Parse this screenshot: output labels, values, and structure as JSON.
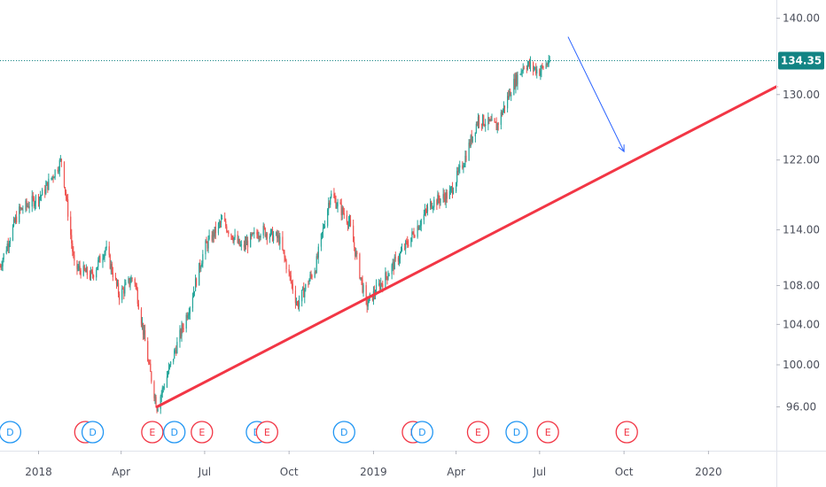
{
  "chart_data": {
    "type": "candlestick",
    "y_axis": {
      "ticks": [
        96,
        100,
        104,
        108,
        114,
        122,
        130,
        140
      ],
      "tick_labels": [
        "96.00",
        "100.00",
        "104.00",
        "108.00",
        "114.00",
        "122.00",
        "130.00",
        "140.00"
      ],
      "scale": "log",
      "range": [
        92,
        142.5
      ]
    },
    "x_axis": {
      "ticks": [
        "2018-01",
        "2018-04",
        "2018-07",
        "2018-10",
        "2019-01",
        "2019-04",
        "2019-07",
        "2019-10",
        "2020-01"
      ],
      "tick_labels": [
        "2018",
        "Apr",
        "Jul",
        "Oct",
        "2019",
        "Apr",
        "Jul",
        "Oct",
        "2020"
      ],
      "range": [
        "2017-11-20",
        "2020-03-15"
      ]
    },
    "price_path": [
      [
        "2017-11-20",
        110
      ],
      [
        "2017-12-10",
        116
      ],
      [
        "2018-01-05",
        118
      ],
      [
        "2018-01-26",
        122
      ],
      [
        "2018-02-09",
        110
      ],
      [
        "2018-02-28",
        109
      ],
      [
        "2018-03-15",
        112
      ],
      [
        "2018-03-30",
        107
      ],
      [
        "2018-04-15",
        109
      ],
      [
        "2018-05-01",
        100
      ],
      [
        "2018-05-10",
        96
      ],
      [
        "2018-05-25",
        100
      ],
      [
        "2018-06-15",
        106
      ],
      [
        "2018-07-01",
        112
      ],
      [
        "2018-07-20",
        115
      ],
      [
        "2018-08-10",
        112
      ],
      [
        "2018-09-01",
        114
      ],
      [
        "2018-09-20",
        113
      ],
      [
        "2018-10-10",
        106
      ],
      [
        "2018-10-30",
        110
      ],
      [
        "2018-11-15",
        118
      ],
      [
        "2018-12-05",
        115
      ],
      [
        "2018-12-24",
        106
      ],
      [
        "2019-01-15",
        109
      ],
      [
        "2019-02-10",
        113
      ],
      [
        "2019-03-05",
        117
      ],
      [
        "2019-03-25",
        118
      ],
      [
        "2019-04-10",
        122
      ],
      [
        "2019-04-25",
        127
      ],
      [
        "2019-05-15",
        126
      ],
      [
        "2019-06-01",
        131
      ],
      [
        "2019-06-15",
        134
      ],
      [
        "2019-07-01",
        133
      ],
      [
        "2019-07-12",
        134.35
      ]
    ],
    "last_price": 134.35,
    "last_price_label": "134.35",
    "last_price_color": "#138484",
    "up_color": "#26a69a",
    "down_color": "#ef5350",
    "trendline": {
      "color": "#f23645",
      "from": [
        "2018-05-10",
        96
      ],
      "to": [
        "2020-03-15",
        131
      ]
    },
    "arrow": {
      "color": "#2962ff",
      "from": [
        "2019-08-01",
        137.5
      ],
      "to": [
        "2019-10-01",
        123
      ]
    },
    "events": [
      {
        "type": "D",
        "date": "2017-12-01"
      },
      {
        "type": "E",
        "date": "2018-02-21"
      },
      {
        "type": "D",
        "date": "2018-03-01"
      },
      {
        "type": "E",
        "date": "2018-05-05"
      },
      {
        "type": "D",
        "date": "2018-05-29"
      },
      {
        "type": "E",
        "date": "2018-06-28"
      },
      {
        "type": "D",
        "date": "2018-08-27"
      },
      {
        "type": "E",
        "date": "2018-09-07"
      },
      {
        "type": "D",
        "date": "2018-11-30"
      },
      {
        "type": "E",
        "date": "2019-02-13"
      },
      {
        "type": "D",
        "date": "2019-02-23"
      },
      {
        "type": "E",
        "date": "2019-04-25"
      },
      {
        "type": "D",
        "date": "2019-06-06"
      },
      {
        "type": "E",
        "date": "2019-07-10"
      },
      {
        "type": "E",
        "date": "2019-10-04"
      }
    ],
    "event_colors": {
      "D": "#2196f3",
      "E": "#f23645"
    },
    "grid": false
  }
}
